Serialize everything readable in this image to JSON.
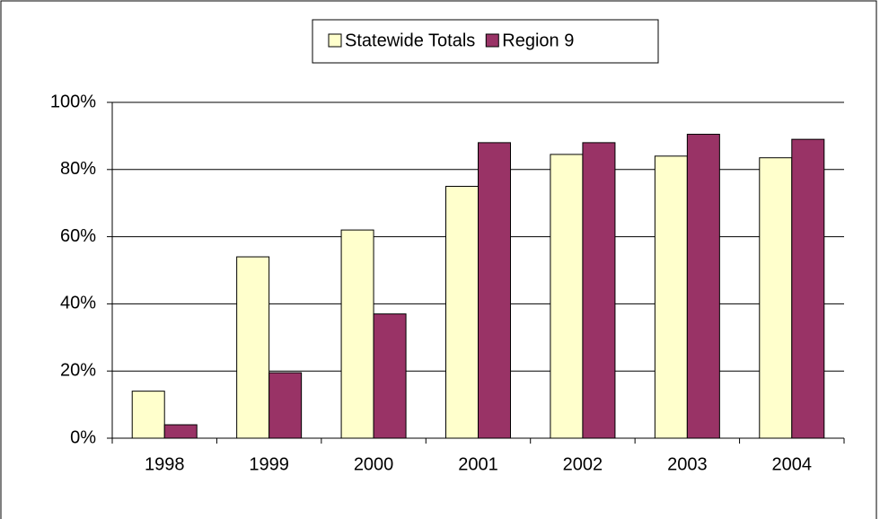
{
  "chart_data": {
    "type": "bar",
    "categories": [
      "1998",
      "1999",
      "2000",
      "2001",
      "2002",
      "2003",
      "2004"
    ],
    "series": [
      {
        "name": "Statewide Totals",
        "color": "#ffffcc",
        "values": [
          14,
          54,
          62,
          75,
          84.5,
          84,
          83.5
        ]
      },
      {
        "name": "Region 9",
        "color": "#993366",
        "values": [
          4,
          19.5,
          37,
          88,
          88,
          90.5,
          89
        ]
      }
    ],
    "ylim": [
      0,
      100
    ],
    "yticks": [
      {
        "value": 0,
        "label": "0%"
      },
      {
        "value": 20,
        "label": "20%"
      },
      {
        "value": 40,
        "label": "40%"
      },
      {
        "value": 60,
        "label": "60%"
      },
      {
        "value": 80,
        "label": "80%"
      },
      {
        "value": 100,
        "label": "100%"
      }
    ],
    "grid": true,
    "legend": "top"
  }
}
